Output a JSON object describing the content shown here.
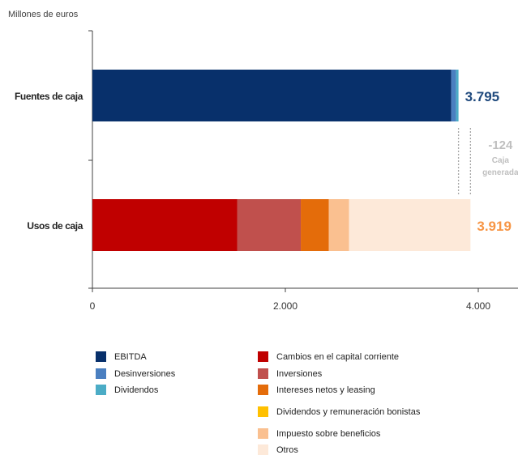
{
  "unit_label": "Millones de euros",
  "colors": {
    "ebitda": "#08306b",
    "desinversiones": "#4a7fc0",
    "dividendos": "#4bacc6",
    "capital_corriente": "#c00000",
    "inversiones": "#c0504d",
    "intereses": "#e46c0a",
    "dividendos_bonistas": "#ffc000",
    "impuesto": "#fac090",
    "otros": "#fde9d9",
    "total_fuentes": "#1f497d",
    "total_usos": "#f79646",
    "caja_generada": "#bfbfbf"
  },
  "chart_data": {
    "type": "bar",
    "orientation": "horizontal",
    "stacked": true,
    "categories": [
      "Fuentes de caja",
      "Usos de caja"
    ],
    "series": [
      {
        "name": "EBITDA",
        "color_key": "ebitda",
        "values": [
          3720,
          0
        ]
      },
      {
        "name": "Desinversiones",
        "color_key": "desinversiones",
        "values": [
          50,
          0
        ]
      },
      {
        "name": "Dividendos",
        "color_key": "dividendos",
        "values": [
          25,
          0
        ]
      },
      {
        "name": "Cambios en el capital corriente",
        "color_key": "capital_corriente",
        "values": [
          0,
          1500
        ]
      },
      {
        "name": "Inversiones",
        "color_key": "inversiones",
        "values": [
          0,
          660
        ]
      },
      {
        "name": "Intereses netos y leasing",
        "color_key": "intereses",
        "values": [
          0,
          290
        ]
      },
      {
        "name": "Dividendos y remuneración bonistas",
        "color_key": "dividendos_bonistas",
        "values": [
          0,
          0
        ]
      },
      {
        "name": "Impuesto sobre beneficios",
        "color_key": "impuesto",
        "values": [
          0,
          210
        ]
      },
      {
        "name": "Otros",
        "color_key": "otros",
        "values": [
          0,
          1259
        ]
      }
    ],
    "totals": [
      {
        "label": "3.795",
        "color_key": "total_fuentes"
      },
      {
        "label": "3.919",
        "color_key": "total_usos"
      }
    ],
    "difference": {
      "value_label": "-124",
      "caption_line1": "Caja",
      "caption_line2": "generada",
      "from": 3795,
      "to": 3919
    },
    "xlim": [
      0,
      4400
    ],
    "xticks": [
      0,
      2000,
      4000
    ],
    "xtick_labels": [
      "0",
      "2.000",
      "4.000"
    ],
    "grid": false,
    "legend_position": "bottom"
  },
  "legend": {
    "items": [
      {
        "label": "EBITDA",
        "color_key": "ebitda"
      },
      {
        "label": "Desinversiones",
        "color_key": "desinversiones"
      },
      {
        "label": "Dividendos",
        "color_key": "dividendos"
      },
      {
        "label": "Cambios en el capital corriente",
        "color_key": "capital_corriente"
      },
      {
        "label": "Inversiones",
        "color_key": "inversiones"
      },
      {
        "label": "Intereses netos y leasing",
        "color_key": "intereses"
      },
      {
        "label": "Dividendos y remuneración bonistas",
        "color_key": "dividendos_bonistas"
      },
      {
        "label": "Impuesto sobre beneficios",
        "color_key": "impuesto"
      },
      {
        "label": "Otros",
        "color_key": "otros"
      }
    ]
  }
}
